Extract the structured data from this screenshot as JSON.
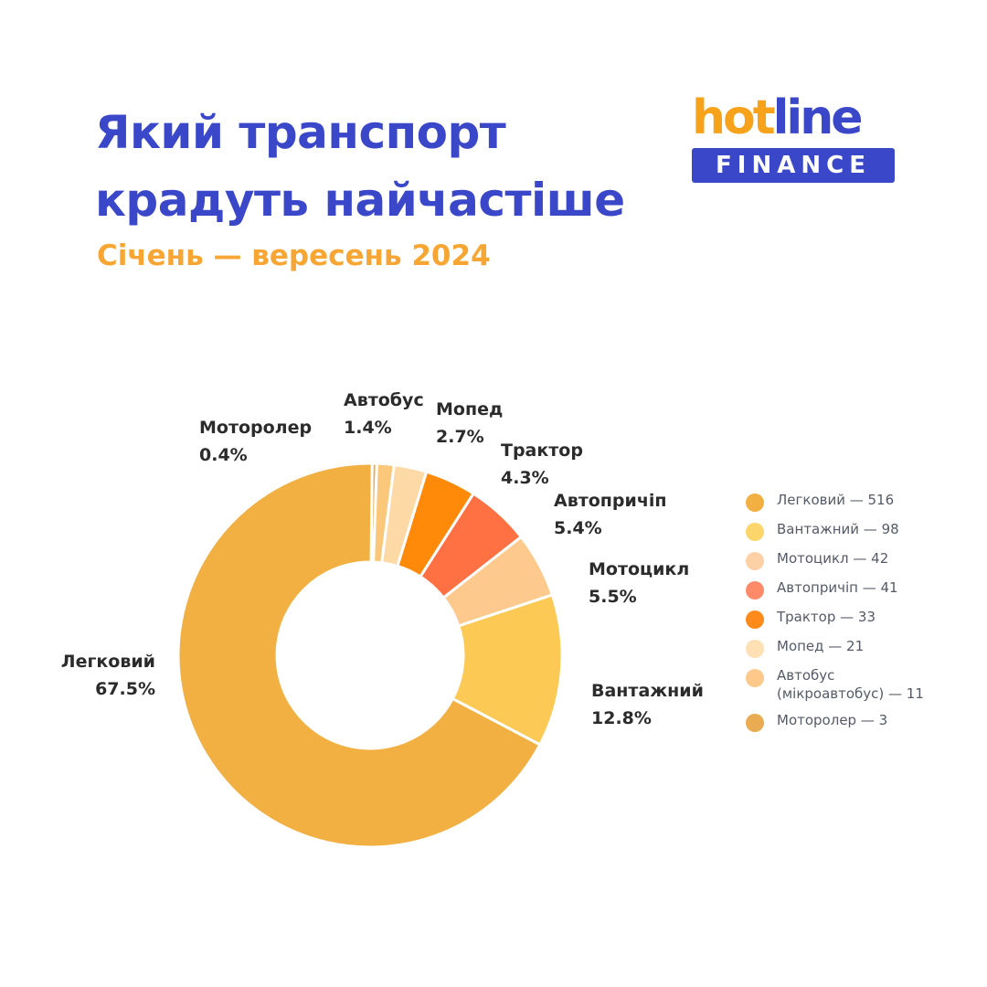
{
  "header": {
    "title_line1": "Який транспорт",
    "title_line2": "крадуть найчастіше",
    "subtitle": "Січень — вересень 2024"
  },
  "logo": {
    "hot": "hot",
    "line": "line",
    "badge": "FINANCE"
  },
  "colors": {
    "title": "#3a47c9",
    "subtitle": "#f7a533",
    "brand_orange": "#f7a21b",
    "brand_blue": "#3a47c9"
  },
  "chart_data": {
    "type": "pie",
    "variant": "donut",
    "slices": [
      {
        "name": "Легковий",
        "value": 516,
        "percent": "67.5%",
        "color": "#f2b043"
      },
      {
        "name": "Вантажний",
        "value": 98,
        "percent": "12.8%",
        "color": "#fcc954"
      },
      {
        "name": "Мотоцикл",
        "value": 42,
        "percent": "5.5%",
        "color": "#fec98d"
      },
      {
        "name": "Автопричіп",
        "value": 41,
        "percent": "5.4%",
        "color": "#ff7043"
      },
      {
        "name": "Трактор",
        "value": 33,
        "percent": "4.3%",
        "color": "#ff8a0a"
      },
      {
        "name": "Мопед",
        "value": 21,
        "percent": "2.7%",
        "color": "#fdd9a6"
      },
      {
        "name": "Автобус",
        "value": 11,
        "percent": "1.4%",
        "color": "#fbc77a"
      },
      {
        "name": "Моторолер",
        "value": 3,
        "percent": "0.4%",
        "color": "#e9ac52"
      }
    ],
    "legend": [
      {
        "label": "Легковий — 516",
        "color": "#f2b043"
      },
      {
        "label": "Вантажний — 98",
        "color": "#fcd66a"
      },
      {
        "label": "Мотоцикл — 42",
        "color": "#fdd0a6"
      },
      {
        "label": "Автопричіп — 41",
        "color": "#ff8a6a"
      },
      {
        "label": "Трактор — 33",
        "color": "#ff8a1c"
      },
      {
        "label": "Мопед — 21",
        "color": "#fde0b4"
      },
      {
        "label": "Автобус\n(мікроавтобус) — 11",
        "color": "#fcc98a"
      },
      {
        "label": "Моторолер — 3",
        "color": "#e9ac52"
      }
    ],
    "legend_position": "right"
  }
}
